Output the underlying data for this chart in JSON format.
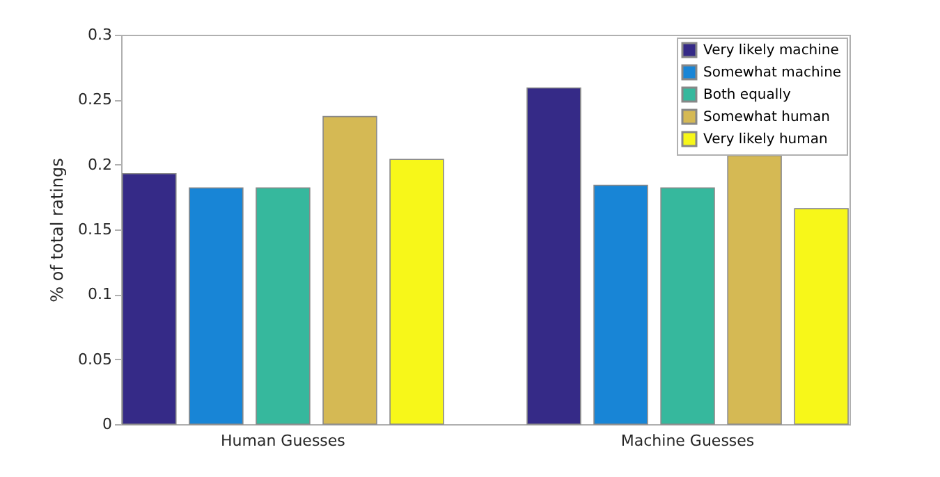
{
  "chart_data": {
    "type": "bar",
    "ylabel": "% of total ratings",
    "categories": [
      "Human Guesses",
      "Machine Guesses"
    ],
    "series": [
      {
        "name": "Very likely machine",
        "color": "#352a87",
        "values": [
          0.193,
          0.259
        ]
      },
      {
        "name": "Somewhat machine",
        "color": "#1885d6",
        "values": [
          0.182,
          0.184
        ]
      },
      {
        "name": "Both equally",
        "color": "#36b89d",
        "values": [
          0.182,
          0.182
        ]
      },
      {
        "name": "Somewhat human",
        "color": "#d5b954",
        "values": [
          0.237,
          0.207
        ]
      },
      {
        "name": "Very likely human",
        "color": "#f7f719",
        "values": [
          0.204,
          0.166
        ]
      }
    ],
    "ylim": [
      0,
      0.3
    ],
    "yticks": [
      0,
      0.05,
      0.1,
      0.15,
      0.2,
      0.25,
      0.3
    ],
    "grid": false,
    "legend": "top right"
  }
}
